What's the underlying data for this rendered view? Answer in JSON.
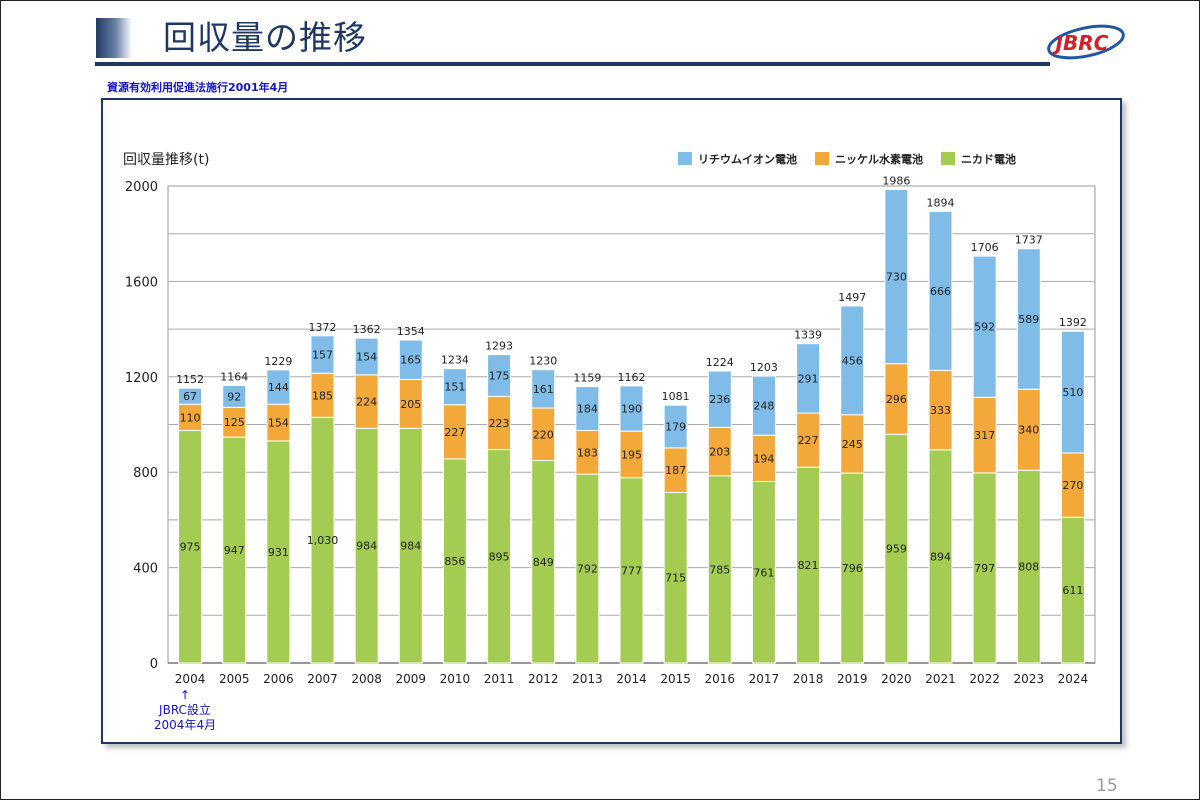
{
  "slide": {
    "title": "回収量の推移",
    "subtitle": "資源有効利用促進法施行2001年4月",
    "logo_text": "JBRC",
    "page_number": "15",
    "annotation_arrow": "↑",
    "annotation_line1": "JBRC設立",
    "annotation_line2": "2004年4月"
  },
  "chart_data": {
    "type": "bar",
    "stacked": true,
    "title": "回収量推移(t)",
    "xlabel": "",
    "ylabel": "回収量推移(t)",
    "ylim": [
      0,
      2000
    ],
    "yticks": [
      0,
      400,
      800,
      1200,
      1600,
      2000
    ],
    "grid": true,
    "legend_position": "top-right",
    "categories": [
      "2004",
      "2005",
      "2006",
      "2007",
      "2008",
      "2009",
      "2010",
      "2011",
      "2012",
      "2013",
      "2014",
      "2015",
      "2016",
      "2017",
      "2018",
      "2019",
      "2020",
      "2021",
      "2022",
      "2023",
      "2024"
    ],
    "series": [
      {
        "name": "ニカド電池",
        "color": "#a4cc52",
        "values": [
          975,
          947,
          931,
          1030,
          984,
          984,
          856,
          895,
          849,
          792,
          777,
          715,
          785,
          761,
          821,
          796,
          959,
          894,
          797,
          808,
          611
        ],
        "labels": [
          "975",
          "947",
          "931",
          "1,030",
          "984",
          "984",
          "856",
          "895",
          "849",
          "792",
          "777",
          "715",
          "785",
          "761",
          "821",
          "796",
          "959",
          "894",
          "797",
          "808",
          "611"
        ]
      },
      {
        "name": "ニッケル水素電池",
        "color": "#f3a93a",
        "values": [
          110,
          125,
          154,
          185,
          224,
          205,
          227,
          223,
          220,
          183,
          195,
          187,
          203,
          194,
          227,
          245,
          296,
          333,
          317,
          340,
          270
        ],
        "labels": [
          "110",
          "125",
          "154",
          "185",
          "224",
          "205",
          "227",
          "223",
          "220",
          "183",
          "195",
          "187",
          "203",
          "194",
          "227",
          "245",
          "296",
          "333",
          "317",
          "340",
          "270"
        ]
      },
      {
        "name": "リチウムイオン電池",
        "color": "#7fbde8",
        "values": [
          67,
          92,
          144,
          157,
          154,
          165,
          151,
          175,
          161,
          184,
          190,
          179,
          236,
          248,
          291,
          456,
          730,
          666,
          592,
          589,
          510
        ],
        "labels": [
          "67",
          "92",
          "144",
          "157",
          "154",
          "165",
          "151",
          "175",
          "161",
          "184",
          "190",
          "179",
          "236",
          "248",
          "291",
          "456",
          "730",
          "666",
          "592",
          "589",
          "510"
        ]
      }
    ],
    "totals": [
      1152,
      1164,
      1229,
      1372,
      1362,
      1354,
      1234,
      1293,
      1230,
      1159,
      1162,
      1081,
      1224,
      1203,
      1339,
      1497,
      1986,
      1894,
      1706,
      1737,
      1392
    ],
    "legend_order": [
      "リチウムイオン電池",
      "ニッケル水素電池",
      "ニカド電池"
    ]
  }
}
